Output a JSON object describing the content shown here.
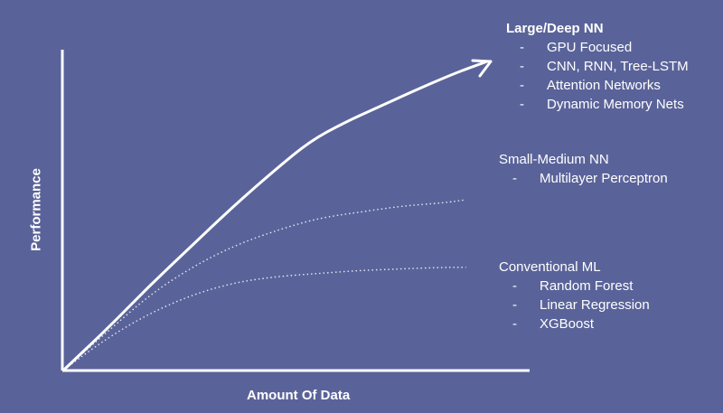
{
  "chart_data": {
    "type": "line",
    "title": "",
    "xlabel": "Amount Of Data",
    "ylabel": "Performance",
    "series": [
      {
        "name": "Large/Deep NN",
        "style": "solid",
        "values": [
          [
            0,
            0
          ],
          [
            0.1,
            0.13
          ],
          [
            0.2,
            0.27
          ],
          [
            0.3,
            0.4
          ],
          [
            0.4,
            0.53
          ],
          [
            0.5,
            0.65
          ],
          [
            0.58,
            0.74
          ],
          [
            0.66,
            0.8
          ],
          [
            0.74,
            0.85
          ],
          [
            0.82,
            0.9
          ],
          [
            0.92,
            0.96
          ],
          [
            1.0,
            1.0
          ]
        ]
      },
      {
        "name": "Small-Medium NN",
        "style": "dotted",
        "values": [
          [
            0,
            0
          ],
          [
            0.1,
            0.12
          ],
          [
            0.2,
            0.24
          ],
          [
            0.3,
            0.33
          ],
          [
            0.4,
            0.4
          ],
          [
            0.5,
            0.45
          ],
          [
            0.6,
            0.49
          ],
          [
            0.7,
            0.51
          ],
          [
            0.8,
            0.53
          ],
          [
            0.9,
            0.54
          ],
          [
            0.95,
            0.55
          ]
        ]
      },
      {
        "name": "Conventional ML",
        "style": "dotted",
        "values": [
          [
            0,
            0
          ],
          [
            0.1,
            0.1
          ],
          [
            0.2,
            0.18
          ],
          [
            0.3,
            0.24
          ],
          [
            0.4,
            0.28
          ],
          [
            0.5,
            0.3
          ],
          [
            0.6,
            0.31
          ],
          [
            0.7,
            0.32
          ],
          [
            0.8,
            0.325
          ],
          [
            0.9,
            0.33
          ],
          [
            0.95,
            0.33
          ]
        ]
      }
    ],
    "xlim": [
      0,
      1
    ],
    "ylim": [
      0,
      1
    ],
    "grid": false,
    "legend": "right"
  },
  "colors": {
    "background": "#5a6399",
    "foreground": "#ffffff"
  },
  "groups": {
    "large": {
      "title": "Large/Deep NN",
      "items": [
        "GPU Focused",
        "CNN, RNN, Tree-LSTM",
        "Attention Networks",
        "Dynamic Memory Nets"
      ]
    },
    "small": {
      "title": "Small-Medium NN",
      "items": [
        "Multilayer Perceptron"
      ]
    },
    "conv": {
      "title": "Conventional ML",
      "items": [
        "Random Forest",
        "Linear Regression",
        "XGBoost"
      ]
    }
  },
  "dash": "-"
}
